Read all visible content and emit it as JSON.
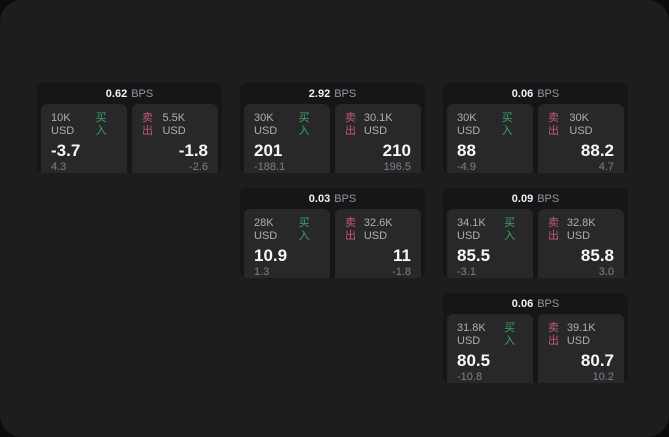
{
  "labels": {
    "buy": "买入",
    "sell": "卖出",
    "bps_suffix": "BPS"
  },
  "colors": {
    "buy_green": "#3ca566",
    "sell_red": "#c25a6e",
    "surface": "#1d1d1f",
    "card": "#161618",
    "panel": "#28282a"
  },
  "cards": [
    {
      "grid": {
        "row": 1,
        "col": 1
      },
      "bps": "0.62",
      "buy": {
        "amount": "10K USD",
        "value": "-3.7",
        "delta": "4.3"
      },
      "sell": {
        "amount": "5.5K USD",
        "value": "-1.8",
        "delta": "-2.6"
      }
    },
    {
      "grid": {
        "row": 1,
        "col": 2
      },
      "bps": "2.92",
      "buy": {
        "amount": "30K USD",
        "value": "201",
        "delta": "-188.1"
      },
      "sell": {
        "amount": "30.1K USD",
        "value": "210",
        "delta": "196.5"
      }
    },
    {
      "grid": {
        "row": 1,
        "col": 3
      },
      "bps": "0.06",
      "buy": {
        "amount": "30K USD",
        "value": "88",
        "delta": "-4.9"
      },
      "sell": {
        "amount": "30K USD",
        "value": "88.2",
        "delta": "4.7"
      }
    },
    {
      "grid": {
        "row": 2,
        "col": 2
      },
      "bps": "0.03",
      "buy": {
        "amount": "28K USD",
        "value": "10.9",
        "delta": "1.3"
      },
      "sell": {
        "amount": "32.6K USD",
        "value": "11",
        "delta": "-1.8"
      }
    },
    {
      "grid": {
        "row": 2,
        "col": 3
      },
      "bps": "0.09",
      "buy": {
        "amount": "34.1K USD",
        "value": "85.5",
        "delta": "-3.1"
      },
      "sell": {
        "amount": "32.8K USD",
        "value": "85.8",
        "delta": "3.0"
      }
    },
    {
      "grid": {
        "row": 3,
        "col": 3
      },
      "bps": "0.06",
      "buy": {
        "amount": "31.8K USD",
        "value": "80.5",
        "delta": "-10.8"
      },
      "sell": {
        "amount": "39.1K USD",
        "value": "80.7",
        "delta": "10.2"
      }
    }
  ]
}
